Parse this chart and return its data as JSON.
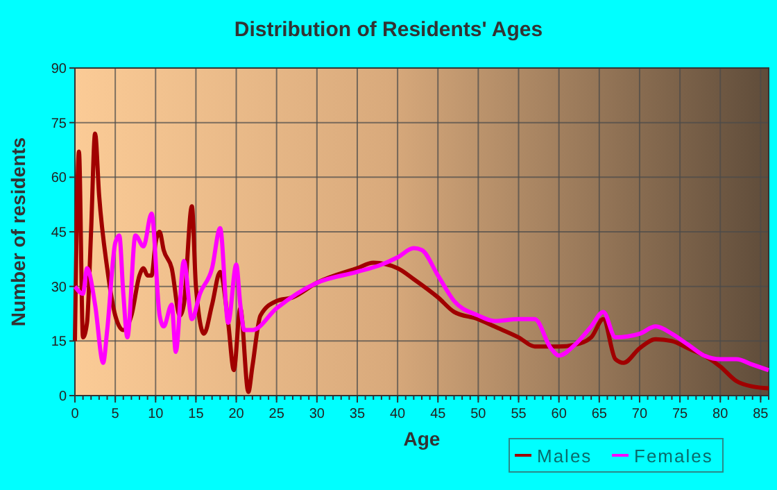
{
  "chart_data": {
    "type": "line",
    "title": "Distribution of Residents' Ages",
    "xlabel": "Age",
    "ylabel": "Number of residents",
    "xlim": [
      0,
      86
    ],
    "xticks": [
      0,
      5,
      10,
      15,
      20,
      25,
      30,
      35,
      40,
      45,
      50,
      55,
      60,
      65,
      70,
      75,
      80,
      85
    ],
    "ylim": [
      0,
      90
    ],
    "yticks": [
      0,
      15,
      30,
      45,
      60,
      75,
      90
    ],
    "grid": true,
    "legend": "bottom right",
    "line_style": "solid",
    "series": [
      {
        "name": "Males",
        "color": "#a00000",
        "x": [
          0,
          0.5,
          1,
          1.5,
          2,
          2.5,
          3,
          4,
          5,
          6,
          7,
          8,
          8.5,
          9,
          9.5,
          10,
          10.5,
          11,
          12,
          13,
          13.5,
          14.5,
          15,
          16,
          17,
          18,
          19,
          19.7,
          20.5,
          21.5,
          22,
          23,
          25,
          27,
          30,
          35,
          37,
          40,
          42,
          45,
          47,
          50,
          52,
          55,
          57,
          60,
          62,
          64,
          65.5,
          67,
          68,
          70,
          72,
          74,
          76,
          78,
          80,
          82,
          84,
          86
        ],
        "values": [
          15,
          67,
          16,
          20,
          45,
          72,
          55,
          35,
          22,
          18,
          22,
          33,
          35,
          33,
          33,
          42,
          45,
          40,
          35,
          22,
          25,
          52,
          30,
          17,
          25,
          34,
          20,
          7,
          24,
          1,
          8,
          22,
          26,
          27,
          31,
          35,
          36.5,
          35,
          32,
          27,
          23,
          21,
          19,
          16,
          13.5,
          13.5,
          14,
          16,
          21,
          10,
          9,
          13,
          15.5,
          15,
          13,
          11,
          8,
          4,
          2.5,
          2
        ]
      },
      {
        "name": "Females",
        "color": "#ff00ff",
        "x": [
          0,
          1,
          1.5,
          2.5,
          3.5,
          4,
          5,
          5.5,
          6,
          6.5,
          7.5,
          8.5,
          9.5,
          10.5,
          11,
          12,
          12.5,
          13.5,
          14.5,
          15.5,
          17,
          18,
          19,
          20,
          20.5,
          21,
          22,
          25,
          30,
          35,
          38,
          40,
          42,
          43,
          45,
          47,
          50,
          52,
          55,
          57,
          59,
          60,
          62,
          64,
          65.5,
          67,
          70,
          72,
          74,
          76,
          78,
          80,
          82,
          84,
          86
        ],
        "values": [
          30,
          28,
          35,
          25,
          9,
          18,
          42,
          44,
          28,
          16,
          44,
          41,
          50,
          22,
          19,
          25,
          12,
          37,
          21,
          28,
          35,
          46,
          20,
          36,
          25,
          18,
          18,
          24,
          31,
          34,
          36,
          38,
          40.5,
          40,
          33,
          26,
          22,
          20.5,
          21,
          21,
          13,
          11,
          14,
          19,
          23,
          16,
          17,
          19,
          17,
          14,
          11,
          10,
          10,
          8.5,
          7
        ]
      }
    ]
  }
}
